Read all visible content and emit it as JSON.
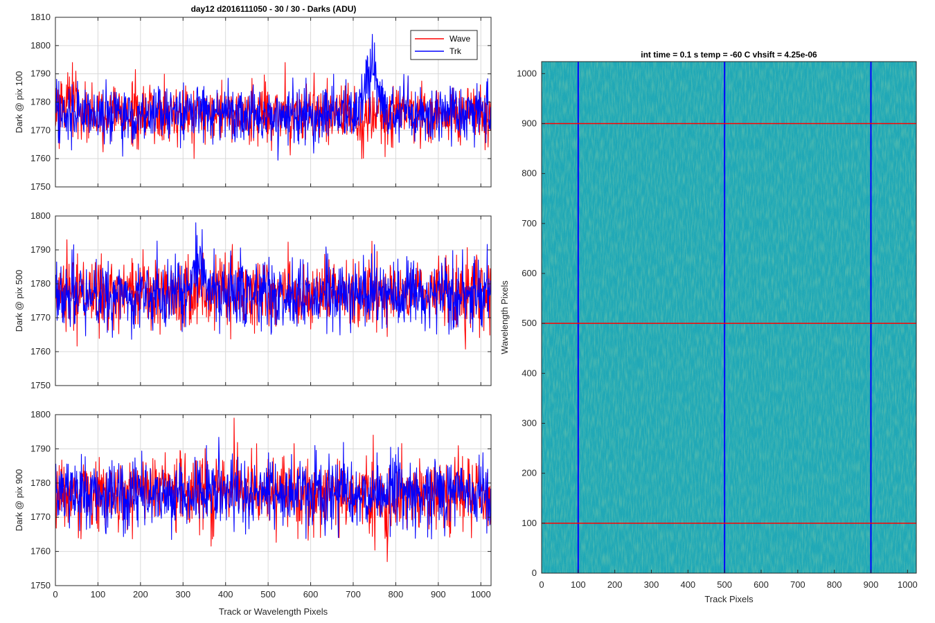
{
  "figure_title": "day12 d2016111050 - 30 / 30 - Darks (ADU)",
  "colors": {
    "wave": "#ff0000",
    "trk": "#0000ff",
    "grid": "#d9d9d9",
    "axis": "#262626"
  },
  "chart_data": [
    {
      "type": "line",
      "title": "day12 d2016111050 - 30 / 30 - Darks (ADU)",
      "xlabel": "",
      "ylabel": "Dark @ pix 100",
      "xlim": [
        0,
        1024
      ],
      "ylim": [
        1750,
        1810
      ],
      "xticks": [
        0,
        100,
        200,
        300,
        400,
        500,
        600,
        700,
        800,
        900,
        1000
      ],
      "xticklabels": [],
      "yticks": [
        1750,
        1760,
        1770,
        1780,
        1790,
        1800,
        1810
      ],
      "grid": true,
      "legend": {
        "position": "top-right",
        "entries": [
          "Wave",
          "Trk"
        ]
      },
      "series": [
        {
          "name": "Wave",
          "color": "#ff0000",
          "mean": 1776,
          "std": 5,
          "min": 1759,
          "max": 1794,
          "features": [
            {
              "x": 40,
              "y": 1794
            },
            {
              "x": 720,
              "y": 1760
            }
          ]
        },
        {
          "name": "Trk",
          "color": "#0000ff",
          "mean": 1776,
          "std": 5,
          "min": 1757,
          "max": 1804,
          "features": [
            {
              "x": 745,
              "y": 1804
            },
            {
              "x": 730,
              "y": 1795
            },
            {
              "x": 750,
              "y": 1801
            }
          ]
        }
      ]
    },
    {
      "type": "line",
      "title": "",
      "xlabel": "",
      "ylabel": "Dark @ pix 500",
      "xlim": [
        0,
        1024
      ],
      "ylim": [
        1750,
        1800
      ],
      "xticks": [
        0,
        100,
        200,
        300,
        400,
        500,
        600,
        700,
        800,
        900,
        1000
      ],
      "xticklabels": [],
      "yticks": [
        1750,
        1760,
        1770,
        1780,
        1790,
        1800
      ],
      "grid": true,
      "series": [
        {
          "name": "Wave",
          "color": "#ff0000",
          "mean": 1777,
          "std": 5,
          "min": 1755,
          "max": 1793
        },
        {
          "name": "Trk",
          "color": "#0000ff",
          "mean": 1777,
          "std": 5,
          "min": 1756,
          "max": 1798,
          "features": [
            {
              "x": 330,
              "y": 1798
            },
            {
              "x": 345,
              "y": 1796
            }
          ]
        }
      ]
    },
    {
      "type": "line",
      "title": "",
      "xlabel": "Track or Wavelength Pixels",
      "ylabel": "Dark @ pix 900",
      "xlim": [
        0,
        1024
      ],
      "ylim": [
        1750,
        1800
      ],
      "xticks": [
        0,
        100,
        200,
        300,
        400,
        500,
        600,
        700,
        800,
        900,
        1000
      ],
      "xticklabels": [
        "0",
        "100",
        "200",
        "300",
        "400",
        "500",
        "600",
        "700",
        "800",
        "900",
        "1000"
      ],
      "yticks": [
        1750,
        1760,
        1770,
        1780,
        1790,
        1800
      ],
      "grid": true,
      "series": [
        {
          "name": "Wave",
          "color": "#ff0000",
          "mean": 1777,
          "std": 5,
          "min": 1757,
          "max": 1799,
          "features": [
            {
              "x": 420,
              "y": 1799
            },
            {
              "x": 780,
              "y": 1757
            }
          ]
        },
        {
          "name": "Trk",
          "color": "#0000ff",
          "mean": 1777,
          "std": 5,
          "min": 1761,
          "max": 1795
        }
      ]
    },
    {
      "type": "heatmap",
      "title": "int time = 0.1 s   temp = -60 C   vhsift = 4.25e-06",
      "xlabel": "Track Pixels",
      "ylabel": "Wavelength Pixels",
      "xlim": [
        0,
        1024
      ],
      "ylim": [
        0,
        1024
      ],
      "xticks": [
        0,
        100,
        200,
        300,
        400,
        500,
        600,
        700,
        800,
        900,
        1000
      ],
      "yticks": [
        0,
        100,
        200,
        300,
        400,
        500,
        600,
        700,
        800,
        900,
        1000
      ],
      "colormap": "parula",
      "base_color": "#1fa8b4",
      "overlay_lines": [
        {
          "orientation": "vertical",
          "x": 100,
          "color": "#0000ff"
        },
        {
          "orientation": "vertical",
          "x": 500,
          "color": "#0000ff"
        },
        {
          "orientation": "vertical",
          "x": 900,
          "color": "#0000ff"
        },
        {
          "orientation": "horizontal",
          "y": 100,
          "color": "#ff0000"
        },
        {
          "orientation": "horizontal",
          "y": 500,
          "color": "#ff0000"
        },
        {
          "orientation": "horizontal",
          "y": 900,
          "color": "#ff0000"
        }
      ]
    }
  ]
}
